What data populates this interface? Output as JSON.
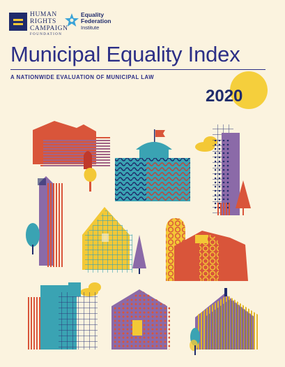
{
  "branding": {
    "hrc_lines": [
      "HUMAN",
      "RIGHTS",
      "CAMPAIGN"
    ],
    "hrc_subline": "FOUNDATION",
    "efi_lines": [
      "Equality",
      "Federation"
    ],
    "efi_subline": "Institute"
  },
  "cover": {
    "title": "Municipal Equality Index",
    "subtitle": "A NATIONWIDE EVALUATION OF MUNICIPAL LAW",
    "year": "2020"
  },
  "colors": {
    "background": "#fbf3df",
    "navy": "#1f2b6b",
    "title_blue": "#2c2f86",
    "sun_yellow": "#f5cf3c",
    "red": "#d9553a",
    "teal": "#3aa3b3",
    "purple": "#8b6aa8",
    "yellow": "#f3c836"
  }
}
